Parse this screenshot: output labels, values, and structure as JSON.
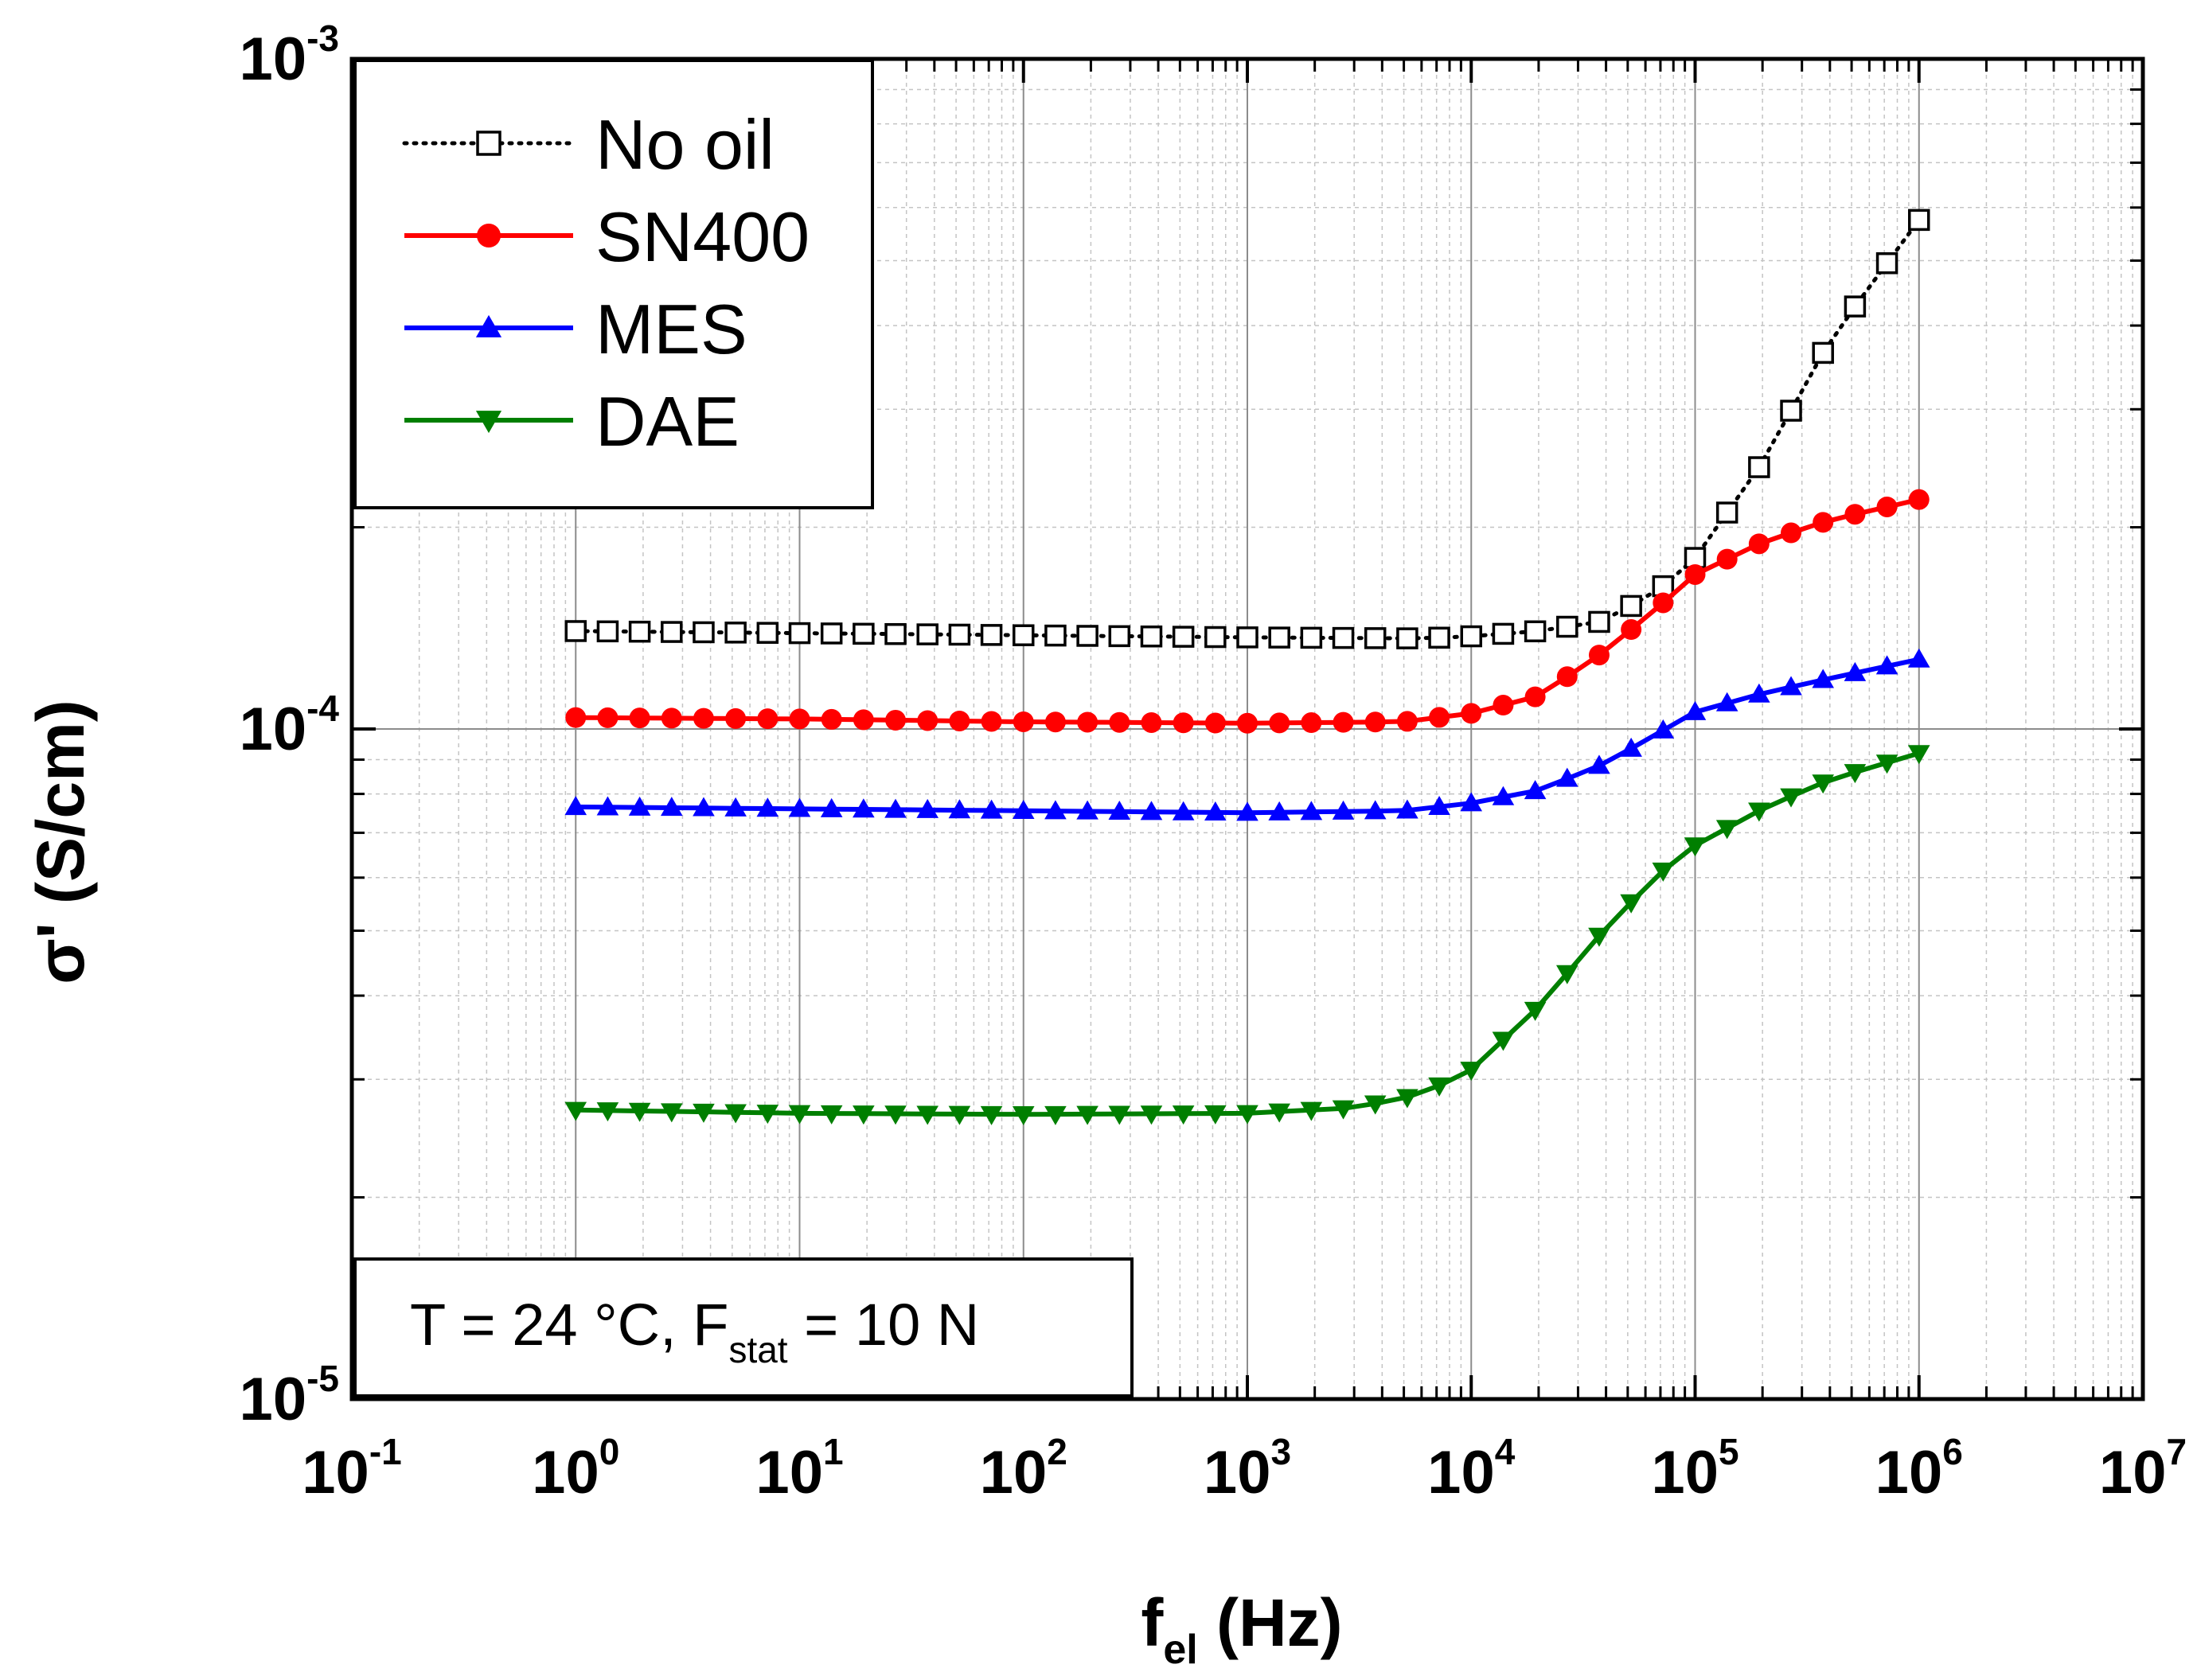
{
  "chart_data": {
    "type": "line",
    "title": "",
    "xlabel": {
      "main": "f",
      "sub": "el",
      "unit": " (Hz)"
    },
    "ylabel": "σ' (S/cm)",
    "xscale": "log",
    "yscale": "log",
    "xlim": [
      0.1,
      10000000
    ],
    "ylim": [
      1e-05,
      0.001
    ],
    "grid": true,
    "x_ticks": [
      {
        "base": "10",
        "exp": "-1"
      },
      {
        "base": "10",
        "exp": "0"
      },
      {
        "base": "10",
        "exp": "1"
      },
      {
        "base": "10",
        "exp": "2"
      },
      {
        "base": "10",
        "exp": "3"
      },
      {
        "base": "10",
        "exp": "4"
      },
      {
        "base": "10",
        "exp": "5"
      },
      {
        "base": "10",
        "exp": "6"
      },
      {
        "base": "10",
        "exp": "7"
      }
    ],
    "y_ticks": [
      {
        "base": "10",
        "exp": "-5"
      },
      {
        "base": "10",
        "exp": "-4"
      },
      {
        "base": "10",
        "exp": "-3"
      }
    ],
    "legend_position": "top-left",
    "annotation": {
      "prefix": "T = 24 °C, F",
      "sub": "stat",
      "suffix": " = 10 N"
    },
    "series": [
      {
        "name": "No oil",
        "color": "#000000",
        "marker": "open-square",
        "line": "dotted",
        "anchors": [
          [
            1,
            0.00014
          ],
          [
            10,
            0.000139
          ],
          [
            100,
            0.000138
          ],
          [
            1000,
            0.000137
          ],
          [
            6000,
            0.0001365
          ],
          [
            10000,
            0.0001375
          ],
          [
            20000,
            0.00014
          ],
          [
            40000,
            0.000145
          ],
          [
            70000,
            0.000162
          ],
          [
            100000,
            0.00018
          ],
          [
            200000,
            0.00025
          ],
          [
            400000,
            0.00038
          ],
          [
            1000000,
            0.000575
          ]
        ]
      },
      {
        "name": "SN400",
        "color": "#ff0000",
        "marker": "filled-circle",
        "line": "solid",
        "anchors": [
          [
            1,
            0.000104
          ],
          [
            10,
            0.0001035
          ],
          [
            100,
            0.0001025
          ],
          [
            1000,
            0.000102
          ],
          [
            5000,
            0.0001025
          ],
          [
            10000,
            0.0001055
          ],
          [
            20000,
            0.000112
          ],
          [
            40000,
            0.000131
          ],
          [
            70000,
            0.000153
          ],
          [
            100000,
            0.00017
          ],
          [
            200000,
            0.00019
          ],
          [
            400000,
            0.000205
          ],
          [
            1000000,
            0.00022
          ]
        ]
      },
      {
        "name": "MES",
        "color": "#0000ff",
        "marker": "filled-triangle-up",
        "line": "solid",
        "anchors": [
          [
            1,
            7.65e-05
          ],
          [
            10,
            7.6e-05
          ],
          [
            100,
            7.55e-05
          ],
          [
            1000,
            7.5e-05
          ],
          [
            5000,
            7.55e-05
          ],
          [
            10000,
            7.75e-05
          ],
          [
            20000,
            8.1e-05
          ],
          [
            40000,
            8.9e-05
          ],
          [
            70000,
            9.9e-05
          ],
          [
            100000,
            0.000106
          ],
          [
            200000,
            0.000113
          ],
          [
            400000,
            0.000119
          ],
          [
            1000000,
            0.000127
          ]
        ]
      },
      {
        "name": "DAE",
        "color": "#007f00",
        "marker": "filled-triangle-down",
        "line": "solid",
        "anchors": [
          [
            1,
            2.7e-05
          ],
          [
            10,
            2.67e-05
          ],
          [
            100,
            2.66e-05
          ],
          [
            1000,
            2.67e-05
          ],
          [
            3000,
            2.72e-05
          ],
          [
            6000,
            2.85e-05
          ],
          [
            10000,
            3.1e-05
          ],
          [
            20000,
            3.85e-05
          ],
          [
            40000,
            5.05e-05
          ],
          [
            70000,
            6.1e-05
          ],
          [
            100000,
            6.7e-05
          ],
          [
            200000,
            7.6e-05
          ],
          [
            400000,
            8.4e-05
          ],
          [
            1000000,
            9.2e-05
          ]
        ]
      }
    ]
  }
}
